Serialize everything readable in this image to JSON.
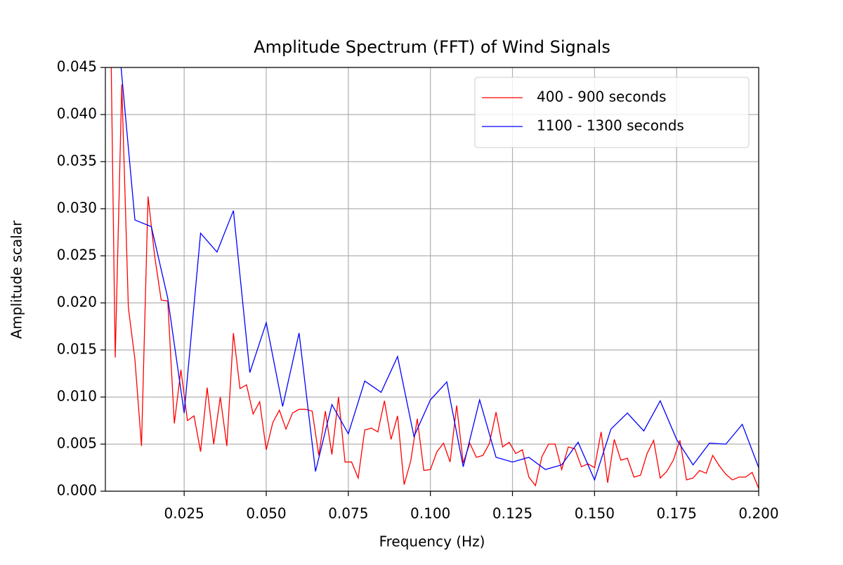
{
  "chart_data": {
    "type": "line",
    "title": "Amplitude Spectrum (FFT) of Wind Signals",
    "x_label": "Frequency (Hz)",
    "y_label": "Amplitude scalar",
    "xlim": [
      0.001,
      0.2
    ],
    "ylim": [
      0,
      0.045
    ],
    "grid": true,
    "legend": "upper right",
    "xticks": [
      0.025,
      {
        "value": 0.05,
        "label": "0.050"
      },
      0.075,
      {
        "value": 0.1,
        "label": "0.100"
      },
      0.125,
      {
        "value": 0.15,
        "label": "0.150"
      },
      0.175,
      {
        "value": 0.2,
        "label": "0.200"
      }
    ],
    "yticks": [
      {
        "value": 0,
        "label": "0.000"
      },
      {
        "value": 0.005,
        "label": "0.005"
      },
      {
        "value": 0.01,
        "label": "0.010"
      },
      {
        "value": 0.015,
        "label": "0.015"
      },
      {
        "value": 0.02,
        "label": "0.020"
      },
      {
        "value": 0.025,
        "label": "0.025"
      },
      {
        "value": 0.03,
        "label": "0.030"
      },
      {
        "value": 0.035,
        "label": "0.035"
      },
      {
        "value": 0.04,
        "label": "0.040"
      },
      {
        "value": 0.045,
        "label": "0.045"
      }
    ],
    "series": [
      {
        "name": "400 - 900 seconds",
        "color": "#ff0000",
        "x": [
          0.002,
          0.004,
          0.006,
          0.008,
          0.01,
          0.012,
          0.014,
          0.016,
          0.018,
          0.02,
          0.022,
          0.024,
          0.026,
          0.028,
          0.03,
          0.032,
          0.034,
          0.036,
          0.038,
          0.04,
          0.042,
          0.044,
          0.046,
          0.048,
          0.05,
          0.052,
          0.054,
          0.056,
          0.058,
          0.06,
          0.062,
          0.064,
          0.066,
          0.068,
          0.07,
          0.072,
          0.074,
          0.076,
          0.078,
          0.08,
          0.082,
          0.084,
          0.086,
          0.088,
          0.09,
          0.092,
          0.094,
          0.096,
          0.098,
          0.1,
          0.102,
          0.104,
          0.106,
          0.108,
          0.11,
          0.112,
          0.114,
          0.116,
          0.118,
          0.12,
          0.122,
          0.124,
          0.126,
          0.128,
          0.13,
          0.132,
          0.134,
          0.136,
          0.138,
          0.14,
          0.142,
          0.144,
          0.146,
          0.148,
          0.15,
          0.152,
          0.154,
          0.156,
          0.158,
          0.16,
          0.162,
          0.164,
          0.166,
          0.168,
          0.17,
          0.172,
          0.174,
          0.176,
          0.178,
          0.18,
          0.182,
          0.184,
          0.186,
          0.188,
          0.19,
          0.192,
          0.194,
          0.196,
          0.198,
          0.2
        ],
        "values": [
          0.065,
          0.0142,
          0.0432,
          0.0195,
          0.014,
          0.0048,
          0.0313,
          0.025,
          0.0203,
          0.0202,
          0.0072,
          0.0129,
          0.0075,
          0.008,
          0.0042,
          0.011,
          0.005,
          0.01,
          0.0048,
          0.0168,
          0.0109,
          0.0113,
          0.0082,
          0.0095,
          0.0044,
          0.0073,
          0.0086,
          0.0066,
          0.0083,
          0.0087,
          0.0087,
          0.0085,
          0.0038,
          0.0085,
          0.0039,
          0.01,
          0.0031,
          0.0031,
          0.0014,
          0.0065,
          0.0067,
          0.0063,
          0.0096,
          0.0055,
          0.008,
          0.0007,
          0.0032,
          0.0077,
          0.0022,
          0.0023,
          0.0042,
          0.0051,
          0.0031,
          0.0091,
          0.003,
          0.0051,
          0.0036,
          0.0038,
          0.0051,
          0.0084,
          0.0047,
          0.0052,
          0.004,
          0.0044,
          0.0015,
          0.0006,
          0.0037,
          0.005,
          0.005,
          0.0023,
          0.0047,
          0.0045,
          0.0026,
          0.0029,
          0.0025,
          0.0063,
          0.0009,
          0.0055,
          0.0033,
          0.0035,
          0.0015,
          0.0017,
          0.004,
          0.0054,
          0.0014,
          0.0021,
          0.0033,
          0.0054,
          0.0012,
          0.0014,
          0.0022,
          0.0019,
          0.0038,
          0.0027,
          0.0018,
          0.0012,
          0.0015,
          0.0015,
          0.002,
          0.0003
        ]
      },
      {
        "name": "1100 - 1300 seconds",
        "color": "#0000ff",
        "x": [
          0.005,
          0.01,
          0.015,
          0.02,
          0.025,
          0.03,
          0.035,
          0.04,
          0.045,
          0.05,
          0.055,
          0.06,
          0.065,
          0.07,
          0.075,
          0.08,
          0.085,
          0.09,
          0.095,
          0.1,
          0.105,
          0.11,
          0.115,
          0.12,
          0.125,
          0.13,
          0.135,
          0.14,
          0.145,
          0.15,
          0.155,
          0.16,
          0.165,
          0.17,
          0.175,
          0.18,
          0.185,
          0.19,
          0.195,
          0.2
        ],
        "values": [
          0.048,
          0.0288,
          0.0281,
          0.0205,
          0.0083,
          0.0274,
          0.0254,
          0.0298,
          0.0126,
          0.0179,
          0.009,
          0.0168,
          0.0021,
          0.0092,
          0.0061,
          0.0117,
          0.0105,
          0.0143,
          0.0058,
          0.0097,
          0.0116,
          0.0026,
          0.0097,
          0.0036,
          0.0031,
          0.0036,
          0.0023,
          0.0028,
          0.0052,
          0.0012,
          0.0066,
          0.0083,
          0.0064,
          0.0096,
          0.0055,
          0.0028,
          0.0051,
          0.005,
          0.0071,
          0.0025
        ]
      }
    ]
  }
}
